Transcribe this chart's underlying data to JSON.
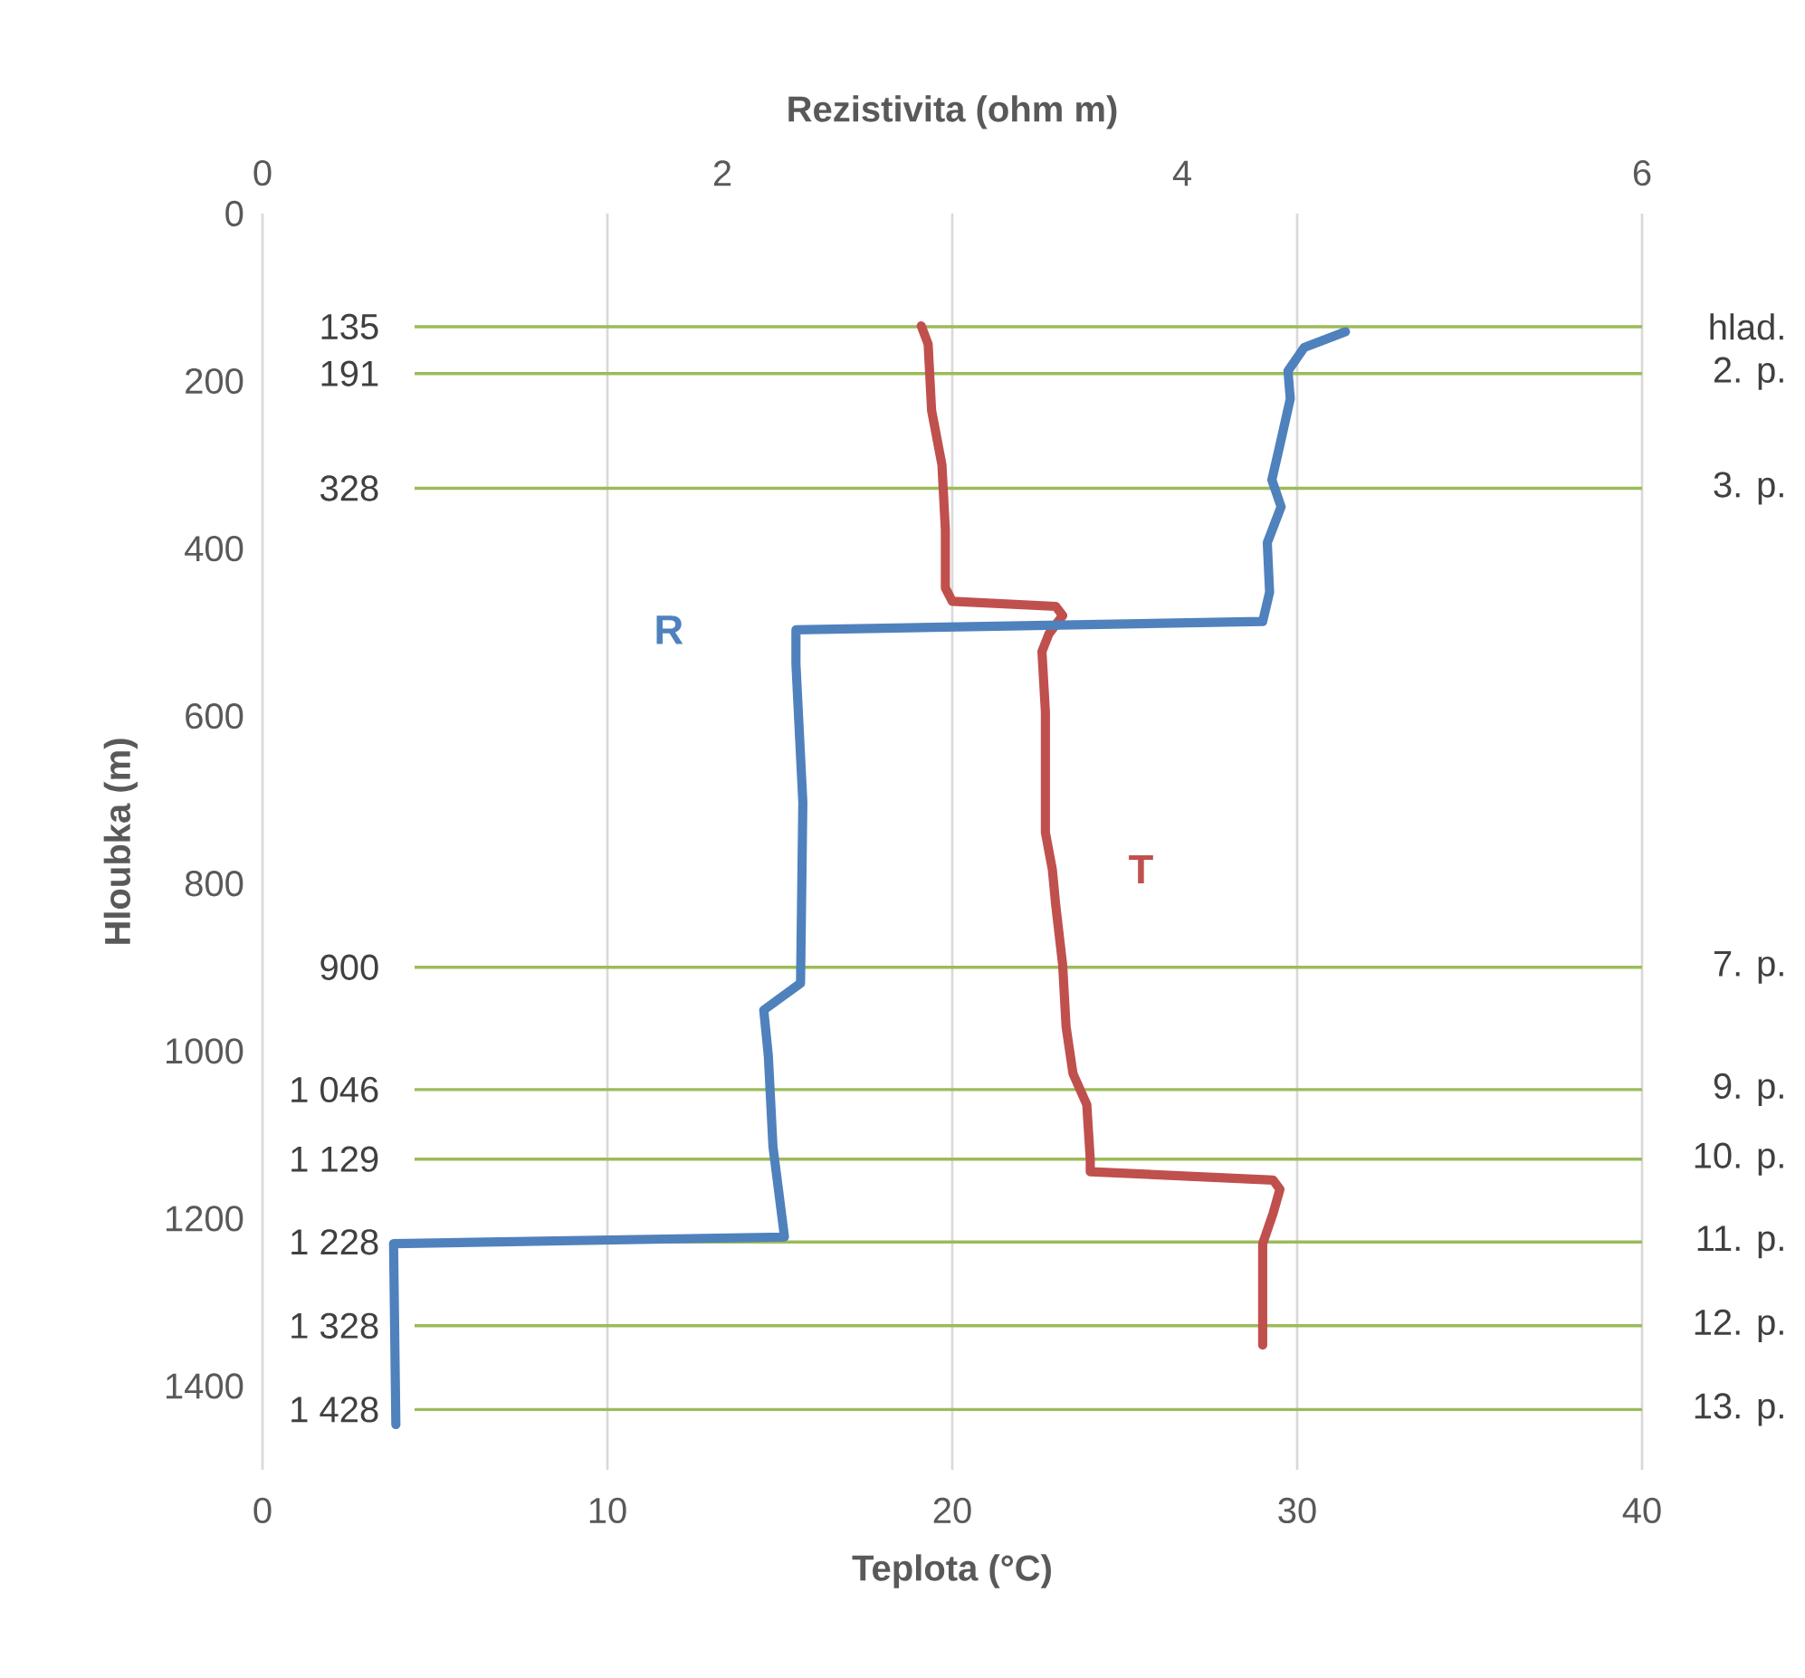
{
  "chart_data": {
    "type": "line",
    "xlabel": "Teplota (°C)",
    "ylabel": "Hloubka (m)",
    "x2label": "Rezistivita (ohm m)",
    "xlim": [
      0,
      40
    ],
    "xticks": [
      0,
      10,
      20,
      30,
      40
    ],
    "x2lim": [
      0,
      6
    ],
    "x2ticks": [
      0,
      2,
      4,
      6
    ],
    "ylim": [
      1500,
      0
    ],
    "yticks": [
      0,
      200,
      400,
      600,
      800,
      1000,
      1200,
      1400
    ],
    "grid": "x",
    "series": [
      {
        "name": "T",
        "color": "#c0504d",
        "x": [
          19.1,
          19.3,
          19.4,
          19.7,
          19.8,
          19.8,
          20.0,
          23.0,
          23.2,
          22.8,
          22.6,
          22.7,
          22.7,
          22.9,
          23.0,
          23.2,
          23.3,
          23.5,
          23.9,
          24.0,
          24.0,
          29.3,
          29.5,
          29.3,
          29.0,
          29.0
        ],
        "values": [
          134,
          156,
          235,
          300,
          378,
          447,
          463,
          469,
          480,
          502,
          523,
          595,
          739,
          783,
          826,
          897,
          971,
          1027,
          1064,
          1129,
          1144,
          1154,
          1165,
          1194,
          1230,
          1351
        ]
      },
      {
        "name": "R",
        "color": "#4f81bd",
        "axis": "x2",
        "x": [
          4.71,
          4.53,
          4.46,
          4.47,
          4.43,
          4.39,
          4.43,
          4.37,
          4.38,
          4.35,
          2.32,
          2.32,
          2.35,
          2.34,
          2.18,
          2.2,
          2.22,
          2.26,
          2.27,
          0.57,
          0.58
        ],
        "values": [
          141,
          160,
          188,
          221,
          270,
          318,
          350,
          393,
          452,
          487,
          497,
          538,
          703,
          919,
          951,
          1006,
          1114,
          1200,
          1222,
          1230,
          1446
        ]
      }
    ],
    "ref_lines": [
      {
        "axis": "y",
        "value": 135,
        "label": "hlad.",
        "color": "#9bbb59"
      },
      {
        "axis": "y",
        "value": 191,
        "label": "2. p.",
        "color": "#9bbb59"
      },
      {
        "axis": "y",
        "value": 328,
        "label": "3. p.",
        "color": "#9bbb59"
      },
      {
        "axis": "y",
        "value": 900,
        "label": "7. p.",
        "color": "#9bbb59"
      },
      {
        "axis": "y",
        "value": 1046,
        "label": "9. p.",
        "color": "#9bbb59"
      },
      {
        "axis": "y",
        "value": 1129,
        "label": "10. p.",
        "color": "#9bbb59"
      },
      {
        "axis": "y",
        "value": 1228,
        "label": "11. p.",
        "color": "#9bbb59"
      },
      {
        "axis": "y",
        "value": 1328,
        "label": "12. p.",
        "color": "#9bbb59"
      },
      {
        "axis": "y",
        "value": 1428,
        "label": "13. p.",
        "color": "#9bbb59"
      }
    ],
    "y2lim": [
      1500,
      0
    ],
    "y2ticks": [
      135,
      191,
      328,
      900,
      {
        "value": 1046,
        "label": "1 046"
      },
      {
        "value": 1129,
        "label": "1 129"
      },
      {
        "value": 1228,
        "label": "1 228"
      },
      {
        "value": 1328,
        "label": "1 328"
      },
      {
        "value": 1428,
        "label": "1 428"
      }
    ]
  }
}
